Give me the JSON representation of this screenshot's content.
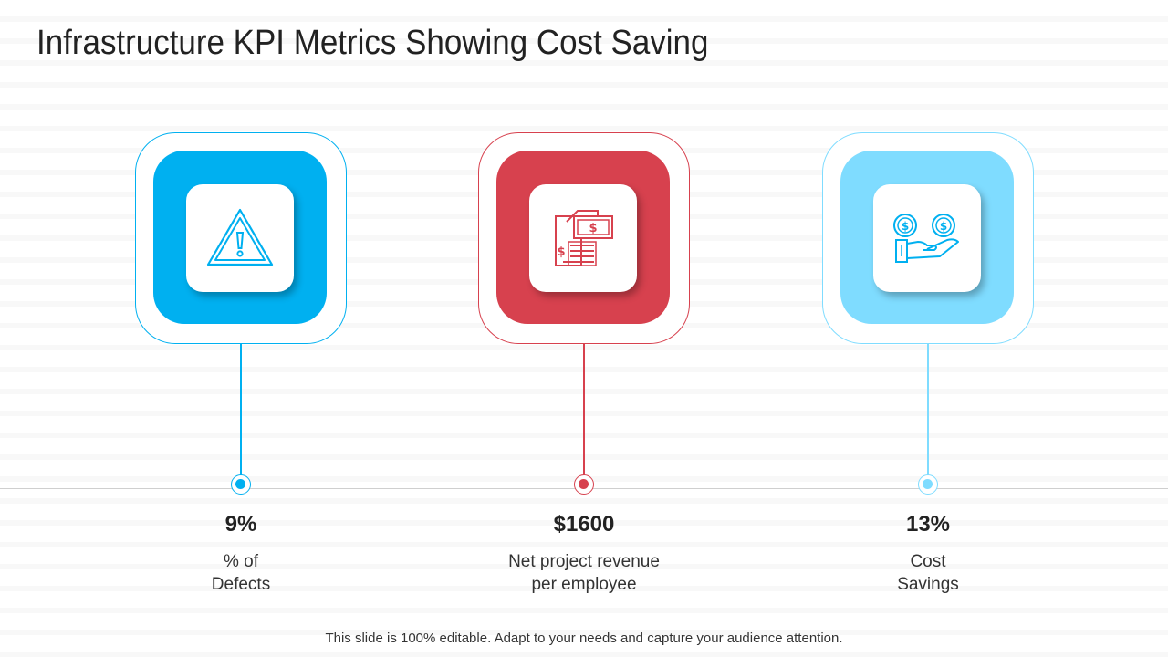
{
  "title": "Infrastructure KPI Metrics Showing Cost Saving",
  "kpis": [
    {
      "value": "9%",
      "label": "% of\nDefects",
      "color": "#00b0f0",
      "icon": "warning-icon"
    },
    {
      "value": "$1600",
      "label": "Net project revenue\nper employee",
      "color": "#d7414e",
      "icon": "invoice-icon"
    },
    {
      "value": "13%",
      "label": "Cost\nSavings",
      "color": "#7fdcff",
      "icon": "hand-coins-icon"
    }
  ],
  "footer": "This slide is 100% editable. Adapt to your needs and capture your audience attention."
}
